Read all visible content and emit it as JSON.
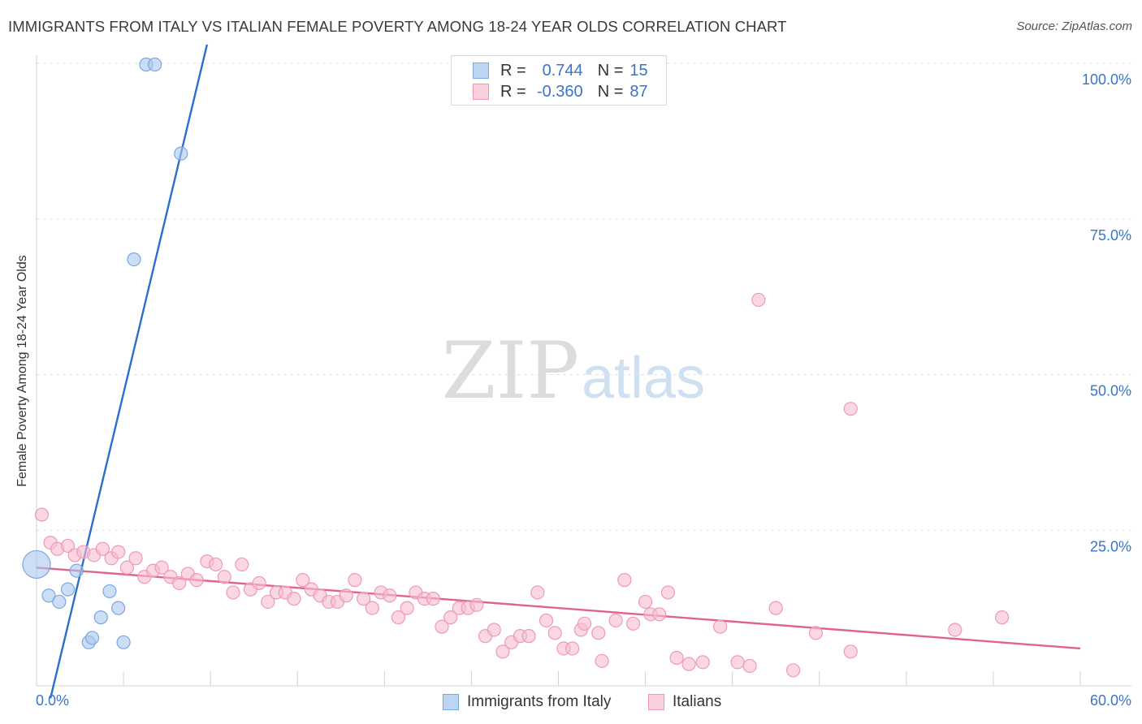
{
  "header": {
    "title": "IMMIGRANTS FROM ITALY VS ITALIAN FEMALE POVERTY AMONG 18-24 YEAR OLDS CORRELATION CHART",
    "source": "Source: ZipAtlas.com"
  },
  "watermark": {
    "zip": "ZIP",
    "atlas": "atlas"
  },
  "stats_legend": {
    "rows": [
      {
        "r_label": "R =",
        "r_value": "0.744",
        "n_label": "N =",
        "n_value": "15"
      },
      {
        "r_label": "R =",
        "r_value": "-0.360",
        "n_label": "N =",
        "n_value": "87"
      }
    ]
  },
  "bottom_legend": {
    "items": [
      {
        "label": "Immigrants from Italy"
      },
      {
        "label": "Italians"
      }
    ]
  },
  "colors": {
    "blue_fill": "#a9c8ef",
    "blue_stroke": "#7ea7dc",
    "blue_line": "#2b6fcd",
    "pink_fill": "#f7bdd0",
    "pink_stroke": "#ee9ab5",
    "pink_line": "#e0638f",
    "axis_label": "#3b74c8",
    "grid": "#e2e2e2"
  },
  "chart_data": {
    "type": "scatter",
    "title": "IMMIGRANTS FROM ITALY VS ITALIAN FEMALE POVERTY AMONG 18-24 YEAR OLDS CORRELATION CHART",
    "xlabel": "",
    "ylabel": "Female Poverty Among 18-24 Year Olds",
    "xlim": [
      0,
      60
    ],
    "ylim": [
      0,
      100
    ],
    "x_tick_labels": [
      "0.0%",
      "60.0%"
    ],
    "y_ticks": [
      25,
      50,
      75,
      100
    ],
    "y_tick_labels": [
      "25.0%",
      "50.0%",
      "75.0%",
      "100.0%"
    ],
    "grid": true,
    "legend_position": "top-center",
    "series": [
      {
        "name": "Immigrants from Italy",
        "color": "blue",
        "trend": {
          "x": [
            0.8,
            9.8
          ],
          "y": [
            -2,
            103
          ]
        },
        "points": [
          {
            "x": 0.0,
            "y": 19.5,
            "size": "large"
          },
          {
            "x": 0.7,
            "y": 14.5
          },
          {
            "x": 1.3,
            "y": 13.5
          },
          {
            "x": 1.8,
            "y": 15.5
          },
          {
            "x": 2.3,
            "y": 18.5
          },
          {
            "x": 3.0,
            "y": 7.0
          },
          {
            "x": 3.2,
            "y": 7.7
          },
          {
            "x": 3.7,
            "y": 11.0
          },
          {
            "x": 4.2,
            "y": 15.2
          },
          {
            "x": 4.7,
            "y": 12.5
          },
          {
            "x": 5.0,
            "y": 7.0
          },
          {
            "x": 5.6,
            "y": 68.5
          },
          {
            "x": 6.3,
            "y": 99.8
          },
          {
            "x": 6.8,
            "y": 99.8
          },
          {
            "x": 8.3,
            "y": 85.5
          }
        ]
      },
      {
        "name": "Italians",
        "color": "pink",
        "trend": {
          "x": [
            0,
            60
          ],
          "y": [
            19,
            6
          ]
        },
        "points": [
          {
            "x": 0.3,
            "y": 27.5
          },
          {
            "x": 0.8,
            "y": 23.0
          },
          {
            "x": 1.2,
            "y": 22.0
          },
          {
            "x": 1.8,
            "y": 22.5
          },
          {
            "x": 2.2,
            "y": 21.0
          },
          {
            "x": 2.7,
            "y": 21.5
          },
          {
            "x": 3.3,
            "y": 21.0
          },
          {
            "x": 3.8,
            "y": 22.0
          },
          {
            "x": 4.3,
            "y": 20.5
          },
          {
            "x": 4.7,
            "y": 21.5
          },
          {
            "x": 5.2,
            "y": 19.0
          },
          {
            "x": 5.7,
            "y": 20.5
          },
          {
            "x": 6.2,
            "y": 17.5
          },
          {
            "x": 6.7,
            "y": 18.5
          },
          {
            "x": 7.2,
            "y": 19.0
          },
          {
            "x": 7.7,
            "y": 17.5
          },
          {
            "x": 8.2,
            "y": 16.5
          },
          {
            "x": 8.7,
            "y": 18.0
          },
          {
            "x": 9.2,
            "y": 17.0
          },
          {
            "x": 9.8,
            "y": 20.0
          },
          {
            "x": 10.3,
            "y": 19.5
          },
          {
            "x": 10.8,
            "y": 17.5
          },
          {
            "x": 11.3,
            "y": 15.0
          },
          {
            "x": 11.8,
            "y": 19.5
          },
          {
            "x": 12.3,
            "y": 15.5
          },
          {
            "x": 12.8,
            "y": 16.5
          },
          {
            "x": 13.3,
            "y": 13.5
          },
          {
            "x": 13.8,
            "y": 15.0
          },
          {
            "x": 14.3,
            "y": 15.0
          },
          {
            "x": 14.8,
            "y": 14.0
          },
          {
            "x": 15.3,
            "y": 17.0
          },
          {
            "x": 15.8,
            "y": 15.5
          },
          {
            "x": 16.3,
            "y": 14.5
          },
          {
            "x": 16.8,
            "y": 13.5
          },
          {
            "x": 17.3,
            "y": 13.5
          },
          {
            "x": 17.8,
            "y": 14.5
          },
          {
            "x": 18.3,
            "y": 17.0
          },
          {
            "x": 18.8,
            "y": 14.0
          },
          {
            "x": 19.3,
            "y": 12.5
          },
          {
            "x": 19.8,
            "y": 15.0
          },
          {
            "x": 20.3,
            "y": 14.5
          },
          {
            "x": 20.8,
            "y": 11.0
          },
          {
            "x": 21.3,
            "y": 12.5
          },
          {
            "x": 21.8,
            "y": 15.0
          },
          {
            "x": 22.3,
            "y": 14.0
          },
          {
            "x": 22.8,
            "y": 14.0
          },
          {
            "x": 23.3,
            "y": 9.5
          },
          {
            "x": 23.8,
            "y": 11.0
          },
          {
            "x": 24.3,
            "y": 12.5
          },
          {
            "x": 24.8,
            "y": 12.5
          },
          {
            "x": 25.3,
            "y": 13.0
          },
          {
            "x": 25.8,
            "y": 8.0
          },
          {
            "x": 26.3,
            "y": 9.0
          },
          {
            "x": 26.8,
            "y": 5.5
          },
          {
            "x": 27.3,
            "y": 7.0
          },
          {
            "x": 27.8,
            "y": 8.0
          },
          {
            "x": 28.3,
            "y": 8.0
          },
          {
            "x": 28.8,
            "y": 15.0
          },
          {
            "x": 29.3,
            "y": 10.5
          },
          {
            "x": 29.8,
            "y": 8.5
          },
          {
            "x": 30.3,
            "y": 6.0
          },
          {
            "x": 30.8,
            "y": 6.0
          },
          {
            "x": 31.3,
            "y": 9.0
          },
          {
            "x": 31.5,
            "y": 10.0
          },
          {
            "x": 32.3,
            "y": 8.5
          },
          {
            "x": 32.5,
            "y": 4.0
          },
          {
            "x": 33.3,
            "y": 10.5
          },
          {
            "x": 33.8,
            "y": 17.0
          },
          {
            "x": 34.3,
            "y": 10.0
          },
          {
            "x": 35.0,
            "y": 13.5
          },
          {
            "x": 35.3,
            "y": 11.5
          },
          {
            "x": 35.8,
            "y": 11.5
          },
          {
            "x": 36.3,
            "y": 15.0
          },
          {
            "x": 36.8,
            "y": 4.5
          },
          {
            "x": 37.5,
            "y": 3.5
          },
          {
            "x": 38.3,
            "y": 3.8
          },
          {
            "x": 39.3,
            "y": 9.5
          },
          {
            "x": 40.3,
            "y": 3.8
          },
          {
            "x": 41.0,
            "y": 3.2
          },
          {
            "x": 41.5,
            "y": 62.0
          },
          {
            "x": 42.5,
            "y": 12.5
          },
          {
            "x": 43.5,
            "y": 2.5
          },
          {
            "x": 44.8,
            "y": 8.5
          },
          {
            "x": 46.8,
            "y": 44.5
          },
          {
            "x": 46.8,
            "y": 5.5
          },
          {
            "x": 52.8,
            "y": 9.0
          },
          {
            "x": 55.5,
            "y": 11.0
          }
        ]
      }
    ]
  }
}
